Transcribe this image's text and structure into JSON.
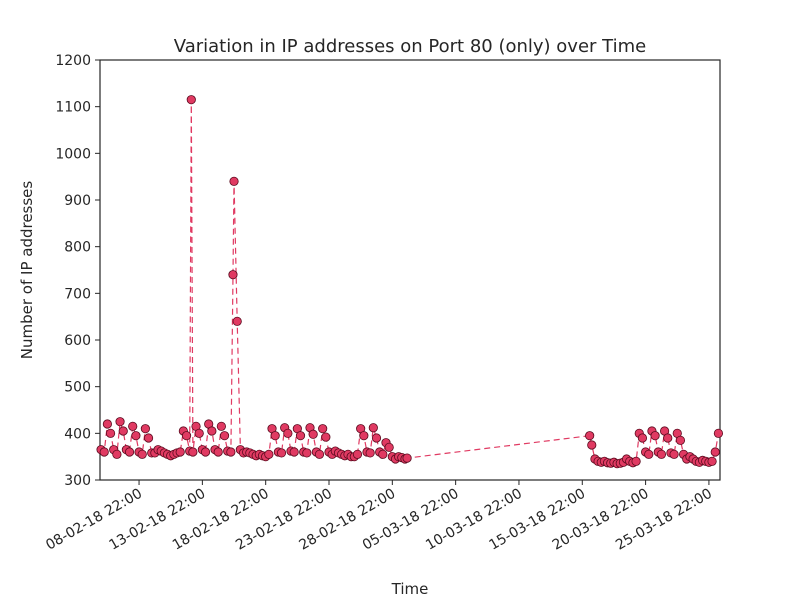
{
  "chart_data": {
    "type": "line",
    "title": "Variation in IP addresses on Port 80 (only) over Time",
    "xlabel": "Time",
    "ylabel": "Number of IP addresses",
    "color": "#e03a62",
    "marker_edge": "#5a0a1e",
    "xlim": [
      "05-02-18 20:00",
      "26-03-18 19:00"
    ],
    "xticks": [
      "08-02-18 22:00",
      "13-02-18 22:00",
      "18-02-18 22:00",
      "23-02-18 22:00",
      "28-02-18 22:00",
      "05-03-18 22:00",
      "10-03-18 22:00",
      "15-03-18 22:00",
      "20-03-18 22:00",
      "25-03-18 22:00"
    ],
    "ylim": [
      300,
      1200
    ],
    "yticks": [
      300,
      400,
      500,
      600,
      700,
      800,
      900,
      1000,
      1100,
      1200
    ],
    "x": [
      "05-02-18 22:00",
      "06-02-18 04:00",
      "06-02-18 10:00",
      "06-02-18 16:00",
      "06-02-18 22:00",
      "07-02-18 04:00",
      "07-02-18 10:00",
      "07-02-18 16:00",
      "07-02-18 22:00",
      "08-02-18 04:00",
      "08-02-18 10:00",
      "08-02-18 16:00",
      "08-02-18 22:00",
      "09-02-18 04:00",
      "09-02-18 10:00",
      "09-02-18 16:00",
      "09-02-18 22:00",
      "10-02-18 04:00",
      "10-02-18 10:00",
      "10-02-18 16:00",
      "10-02-18 22:00",
      "11-02-18 04:00",
      "11-02-18 10:00",
      "11-02-18 16:00",
      "11-02-18 22:00",
      "12-02-18 04:00",
      "12-02-18 10:00",
      "12-02-18 16:00",
      "12-02-18 22:00",
      "13-02-18 01:00",
      "13-02-18 04:00",
      "13-02-18 10:00",
      "13-02-18 16:00",
      "13-02-18 22:00",
      "14-02-18 04:00",
      "14-02-18 10:00",
      "14-02-18 16:00",
      "14-02-18 22:00",
      "15-02-18 04:00",
      "15-02-18 10:00",
      "15-02-18 16:00",
      "15-02-18 22:00",
      "16-02-18 04:00",
      "16-02-18 08:00",
      "16-02-18 10:00",
      "16-02-18 16:00",
      "16-02-18 22:00",
      "17-02-18 04:00",
      "17-02-18 10:00",
      "17-02-18 16:00",
      "17-02-18 22:00",
      "18-02-18 04:00",
      "18-02-18 10:00",
      "18-02-18 16:00",
      "18-02-18 22:00",
      "19-02-18 04:00",
      "19-02-18 10:00",
      "19-02-18 16:00",
      "19-02-18 22:00",
      "20-02-18 04:00",
      "20-02-18 10:00",
      "20-02-18 16:00",
      "20-02-18 22:00",
      "21-02-18 04:00",
      "21-02-18 10:00",
      "21-02-18 16:00",
      "21-02-18 22:00",
      "22-02-18 04:00",
      "22-02-18 10:00",
      "22-02-18 16:00",
      "22-02-18 22:00",
      "23-02-18 04:00",
      "23-02-18 10:00",
      "23-02-18 16:00",
      "23-02-18 22:00",
      "24-02-18 04:00",
      "24-02-18 10:00",
      "24-02-18 16:00",
      "24-02-18 22:00",
      "25-02-18 04:00",
      "25-02-18 10:00",
      "25-02-18 16:00",
      "25-02-18 22:00",
      "26-02-18 04:00",
      "26-02-18 10:00",
      "26-02-18 16:00",
      "26-02-18 22:00",
      "27-02-18 04:00",
      "27-02-18 10:00",
      "27-02-18 16:00",
      "27-02-18 22:00",
      "28-02-18 04:00",
      "28-02-18 10:00",
      "28-02-18 16:00",
      "28-02-18 22:00",
      "01-03-18 04:00",
      "01-03-18 10:00",
      "01-03-18 16:00",
      "01-03-18 22:00",
      "02-03-18 02:00",
      "16-03-18 12:00",
      "16-03-18 16:00",
      "16-03-18 22:00",
      "17-03-18 04:00",
      "17-03-18 10:00",
      "17-03-18 16:00",
      "17-03-18 22:00",
      "18-03-18 04:00",
      "18-03-18 10:00",
      "18-03-18 16:00",
      "18-03-18 22:00",
      "19-03-18 04:00",
      "19-03-18 10:00",
      "19-03-18 16:00",
      "19-03-18 22:00",
      "20-03-18 04:00",
      "20-03-18 10:00",
      "20-03-18 16:00",
      "20-03-18 22:00",
      "21-03-18 04:00",
      "21-03-18 10:00",
      "21-03-18 16:00",
      "21-03-18 22:00",
      "22-03-18 04:00",
      "22-03-18 10:00",
      "22-03-18 16:00",
      "22-03-18 22:00",
      "23-03-18 04:00",
      "23-03-18 10:00",
      "23-03-18 16:00",
      "23-03-18 22:00",
      "24-03-18 04:00",
      "24-03-18 10:00",
      "24-03-18 16:00",
      "24-03-18 22:00",
      "25-03-18 04:00",
      "25-03-18 10:00",
      "25-03-18 16:00",
      "25-03-18 22:00",
      "26-03-18 04:00",
      "26-03-18 10:00",
      "26-03-18 16:00"
    ],
    "values": [
      365,
      360,
      420,
      400,
      365,
      355,
      425,
      405,
      365,
      360,
      415,
      395,
      360,
      355,
      410,
      390,
      358,
      358,
      365,
      362,
      358,
      355,
      352,
      355,
      358,
      360,
      405,
      395,
      362,
      1115,
      360,
      415,
      400,
      365,
      360,
      420,
      405,
      365,
      360,
      415,
      395,
      362,
      360,
      740,
      940,
      640,
      365,
      358,
      360,
      358,
      355,
      352,
      355,
      352,
      350,
      355,
      410,
      395,
      360,
      358,
      412,
      400,
      362,
      360,
      410,
      395,
      360,
      358,
      412,
      398,
      360,
      355,
      410,
      392,
      360,
      355,
      362,
      358,
      355,
      352,
      355,
      350,
      350,
      355,
      410,
      395,
      360,
      358,
      412,
      390,
      360,
      355,
      380,
      370,
      350,
      345,
      350,
      348,
      345,
      347,
      395,
      375,
      345,
      340,
      338,
      340,
      337,
      336,
      338,
      335,
      336,
      338,
      345,
      340,
      337,
      340,
      400,
      390,
      360,
      355,
      405,
      395,
      360,
      355,
      405,
      390,
      358,
      355,
      400,
      385,
      355,
      345,
      350,
      345,
      340,
      338,
      342,
      340,
      338,
      340,
      360,
      400
    ]
  }
}
